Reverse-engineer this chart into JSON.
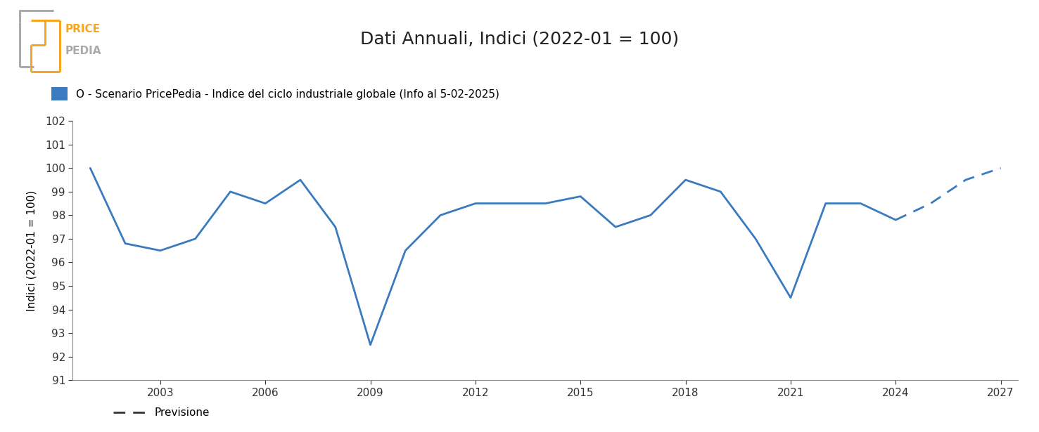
{
  "title": "Dati Annuali, Indici (2022-01 = 100)",
  "ylabel": "Indici (2022-01 = 100)",
  "line_color": "#3a7abf",
  "background_color": "#ffffff",
  "legend_label": "O - Scenario PricePedia - Indice del ciclo industriale globale (Info al 5-02-2025)",
  "legend_square_color": "#3a7abf",
  "forecast_legend_label": "Previsione",
  "solid_years": [
    2001,
    2002,
    2003,
    2004,
    2005,
    2006,
    2007,
    2008,
    2009,
    2010,
    2011,
    2012,
    2013,
    2014,
    2015,
    2016,
    2017,
    2018,
    2019,
    2020,
    2021,
    2022,
    2023,
    2024
  ],
  "solid_values": [
    100.0,
    96.8,
    96.5,
    97.0,
    99.0,
    98.5,
    99.5,
    97.5,
    92.5,
    96.5,
    98.0,
    98.5,
    98.5,
    98.5,
    98.8,
    97.5,
    98.0,
    99.5,
    99.0,
    97.0,
    94.5,
    98.5,
    98.5,
    97.8
  ],
  "dashed_years": [
    2024,
    2025,
    2026,
    2027
  ],
  "dashed_values": [
    97.8,
    98.5,
    99.5,
    100.0
  ],
  "ylim": [
    91,
    102
  ],
  "yticks": [
    91,
    92,
    93,
    94,
    95,
    96,
    97,
    98,
    99,
    100,
    101,
    102
  ],
  "xlim_start": 2000.5,
  "xlim_end": 2027.5,
  "xticks": [
    2003,
    2006,
    2009,
    2012,
    2015,
    2018,
    2021,
    2024,
    2027
  ],
  "linewidth": 2.0,
  "logo_orange": "#f5a623",
  "logo_gray": "#aaaaaa",
  "title_fontsize": 18,
  "legend_fontsize": 11,
  "tick_fontsize": 11,
  "ylabel_fontsize": 11
}
